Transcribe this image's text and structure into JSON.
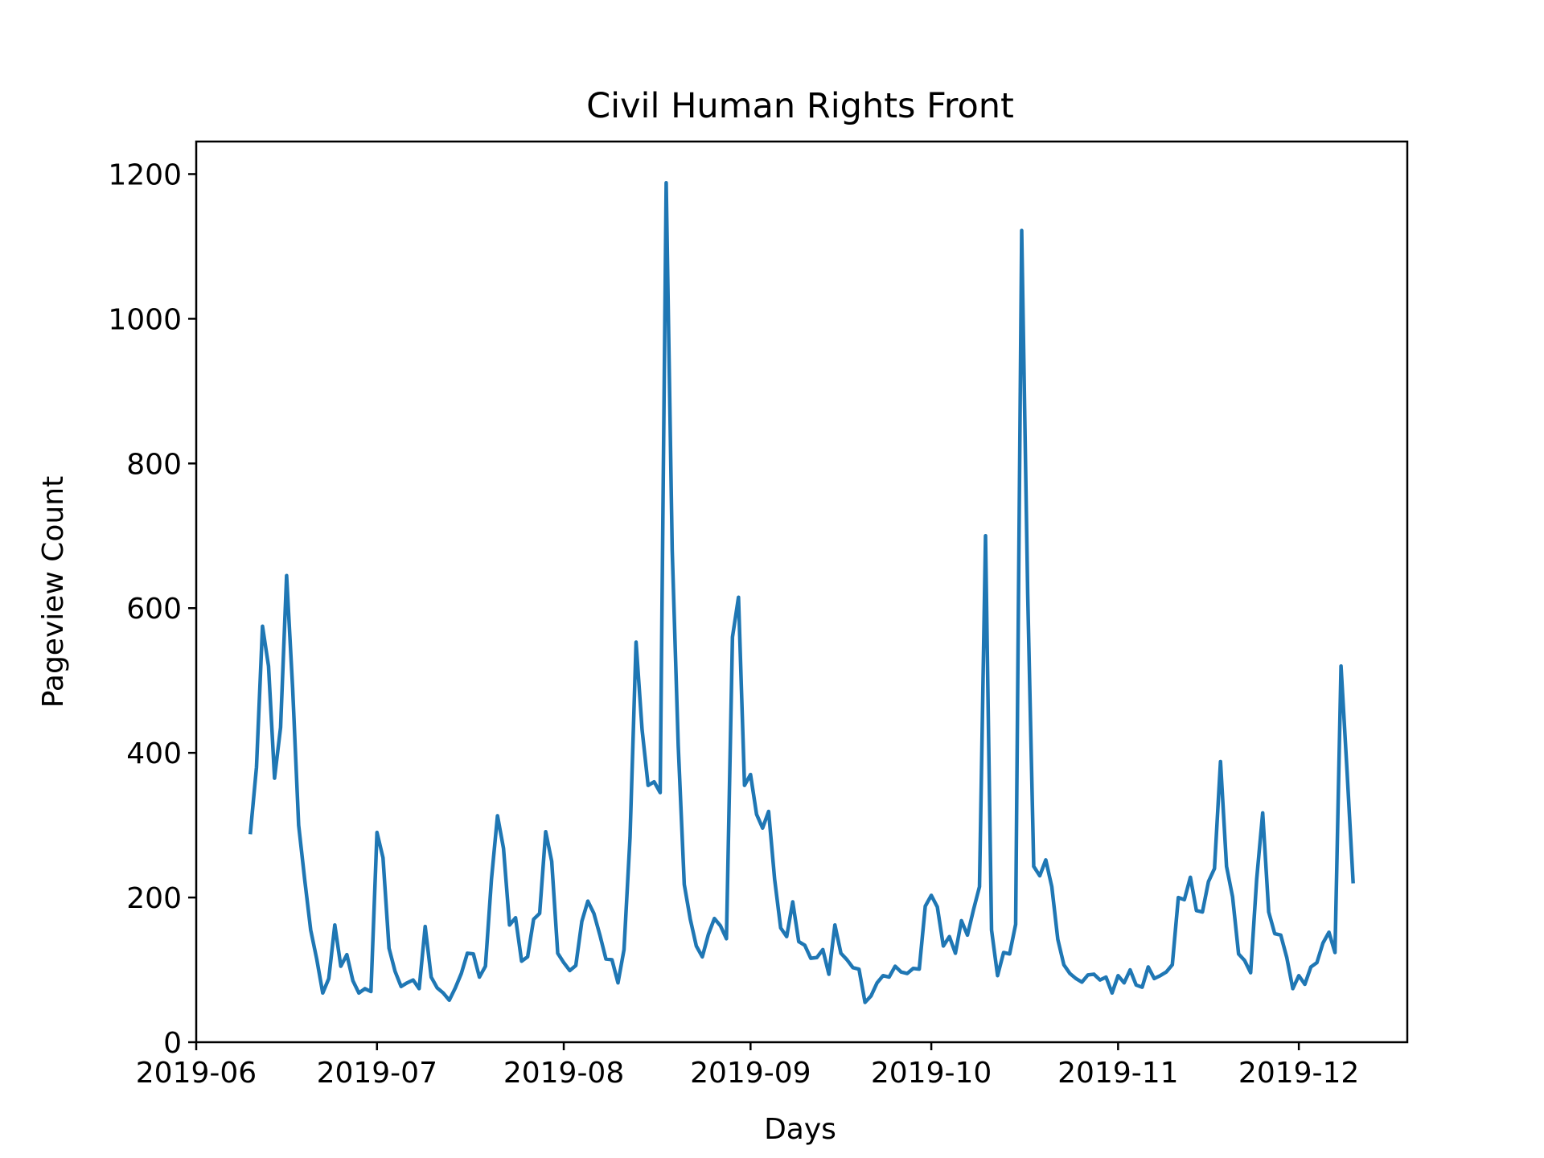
{
  "chart_data": {
    "type": "line",
    "title": "Civil Human Rights Front",
    "xlabel": "Days",
    "ylabel": "Pageview Count",
    "x_start": "2019-06-10",
    "x_end": "2019-12-10",
    "xlim": [
      "2019-06-01",
      "2019-12-19"
    ],
    "ylim": [
      0,
      1245
    ],
    "x_ticks": [
      "2019-06",
      "2019-07",
      "2019-08",
      "2019-09",
      "2019-10",
      "2019-11",
      "2019-12"
    ],
    "y_ticks": [
      0,
      200,
      400,
      600,
      800,
      1000,
      1200
    ],
    "grid": false,
    "line_color": "#1f77b4",
    "series": [
      {
        "values": [
          290,
          380,
          575,
          520,
          365,
          435,
          645,
          490,
          300,
          225,
          155,
          115,
          68,
          88,
          162,
          105,
          121,
          85,
          68,
          74,
          70,
          290,
          255,
          130,
          98,
          77,
          82,
          86,
          74,
          160,
          90,
          75,
          68,
          58,
          75,
          95,
          123,
          122,
          90,
          105,
          225,
          313,
          268,
          162,
          172,
          112,
          118,
          170,
          178,
          291,
          250,
          123,
          110,
          99,
          106,
          167,
          195,
          178,
          148,
          115,
          114,
          82,
          128,
          283,
          553,
          432,
          355,
          360,
          345,
          1188,
          680,
          410,
          218,
          170,
          133,
          118,
          149,
          171,
          161,
          143,
          560,
          615,
          355,
          370,
          315,
          296,
          319,
          225,
          158,
          146,
          194,
          139,
          134,
          116,
          117,
          128,
          94,
          162,
          123,
          114,
          103,
          101,
          55,
          64,
          82,
          92,
          90,
          105,
          97,
          95,
          102,
          101,
          188,
          203,
          187,
          133,
          146,
          123,
          168,
          148,
          183,
          215,
          700,
          155,
          92,
          124,
          122,
          163,
          1122,
          620,
          243,
          230,
          252,
          215,
          142,
          107,
          95,
          88,
          83,
          93,
          94,
          86,
          90,
          68,
          92,
          82,
          100,
          79,
          76,
          104,
          88,
          92,
          97,
          107,
          200,
          197,
          228,
          182,
          180,
          222,
          240,
          388,
          243,
          201,
          122,
          113,
          96,
          225,
          317,
          180,
          150,
          148,
          117,
          74,
          92,
          80,
          104,
          110,
          137,
          152,
          124,
          520,
          375,
          222
        ]
      }
    ]
  }
}
